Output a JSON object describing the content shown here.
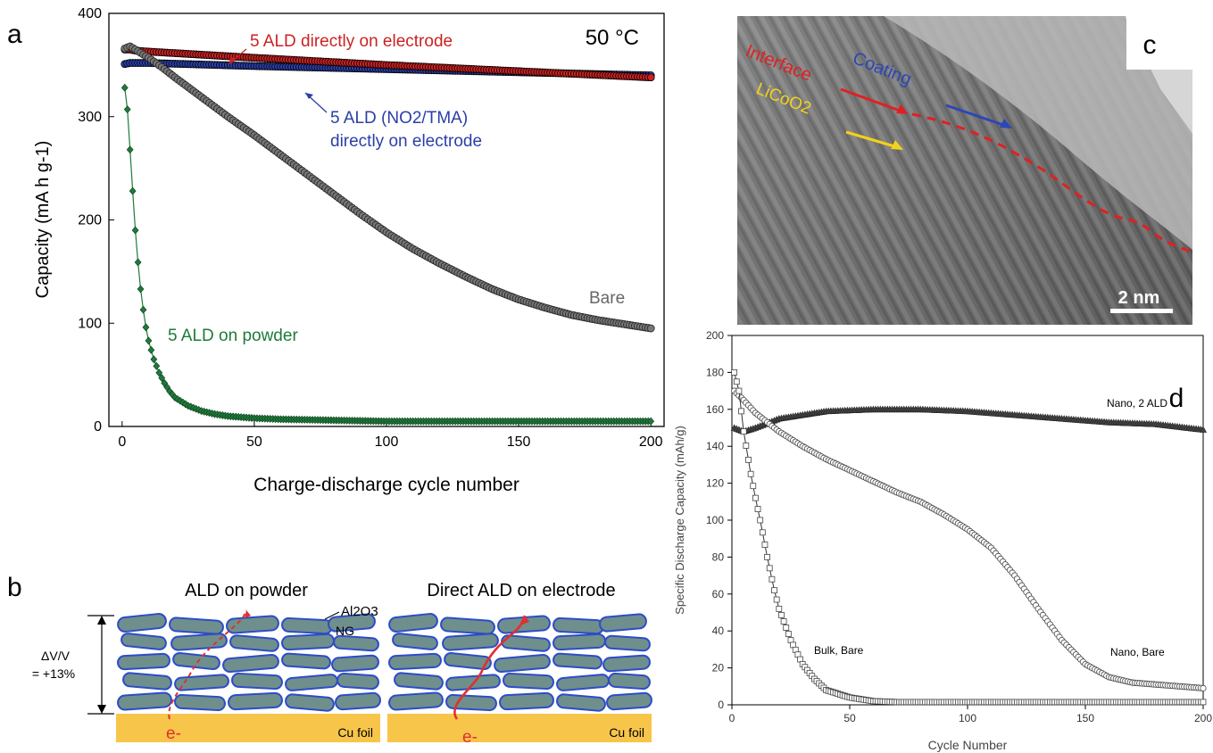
{
  "panels": {
    "a": {
      "label": "a",
      "temp_label": "50 °C"
    },
    "b": {
      "label": "b",
      "left_title": "ALD on powder",
      "right_title": "Direct ALD on electrode",
      "al2o3_label": "Al2O3",
      "ng_label": "NG",
      "dv_label_1": "ΔV/V",
      "dv_label_2": "= +13%",
      "cu_label_left": "Cu foil",
      "cu_label_right": "Cu foil",
      "electron_left": "e-",
      "electron_right": "e-"
    },
    "c": {
      "label": "c",
      "interface_label": "Interface",
      "coating_label": "Coating",
      "licoo2_label": "LiCoO2",
      "scale_label": "2 nm"
    },
    "d": {
      "label": "d"
    }
  },
  "chart_data": [
    {
      "type": "line",
      "panel": "a",
      "xlabel": "Charge-discharge cycle number",
      "ylabel": "Capacity (mA h g-1)",
      "xlim": [
        -5,
        205
      ],
      "ylim": [
        0,
        400
      ],
      "xticks": [
        0,
        50,
        100,
        150,
        200
      ],
      "yticks": [
        0,
        100,
        200,
        300,
        400
      ],
      "annotations": {
        "red": "5 ALD directly on electrode",
        "blue_line1": "5 ALD (NO2/TMA)",
        "blue_line2": "directly on electrode",
        "bare": "Bare",
        "green": "5 ALD on powder"
      },
      "series": [
        {
          "key": "red",
          "color": "#cc2222",
          "x": [
            1,
            3,
            5,
            10,
            50,
            100,
            150,
            200
          ],
          "y": [
            365,
            365,
            364,
            363,
            357,
            350,
            344,
            338
          ]
        },
        {
          "key": "blue",
          "color": "#2a3fa8",
          "x": [
            1,
            3,
            5,
            10,
            50,
            100,
            150,
            200
          ],
          "y": [
            351,
            352,
            352,
            352,
            349,
            346,
            343,
            340
          ]
        },
        {
          "key": "bare",
          "color": "#333333",
          "x": [
            1,
            3,
            5,
            10,
            15,
            20,
            30,
            40,
            50,
            60,
            70,
            80,
            90,
            100,
            110,
            120,
            130,
            140,
            150,
            160,
            170,
            180,
            190,
            200
          ],
          "y": [
            366,
            368,
            365,
            357,
            348,
            338,
            319,
            300,
            282,
            263,
            244,
            225,
            206,
            188,
            172,
            158,
            145,
            133,
            123,
            115,
            108,
            103,
            99,
            95
          ]
        },
        {
          "key": "green",
          "color": "#1f7a3a",
          "x": [
            1,
            2,
            3,
            4,
            5,
            6,
            7,
            8,
            9,
            10,
            12,
            14,
            16,
            18,
            20,
            25,
            30,
            35,
            40,
            50,
            60,
            80,
            100,
            150,
            200
          ],
          "y": [
            328,
            307,
            268,
            228,
            190,
            159,
            133,
            113,
            96,
            83,
            65,
            52,
            42,
            34,
            28,
            20,
            15,
            12,
            10,
            8,
            7,
            6,
            5,
            5,
            5
          ]
        }
      ]
    },
    {
      "type": "line",
      "panel": "d",
      "xlabel": "Cycle Number",
      "ylabel": "Specific Discharge Capacity (mAh/g)",
      "xlim": [
        0,
        200
      ],
      "ylim": [
        0,
        200
      ],
      "xticks": [
        0,
        50,
        100,
        150,
        200
      ],
      "yticks": [
        0,
        20,
        40,
        60,
        80,
        100,
        120,
        140,
        160,
        180,
        200
      ],
      "annotations": {
        "nano2": "Nano, 2 ALD",
        "bulk": "Bulk, Bare",
        "nanobare": "Nano, Bare"
      },
      "series": [
        {
          "key": "nano2",
          "x": [
            1,
            5,
            10,
            20,
            40,
            60,
            80,
            100,
            120,
            140,
            160,
            180,
            200
          ],
          "y": [
            150,
            148,
            150,
            155,
            159,
            160,
            160,
            159,
            157,
            155,
            153,
            152,
            149
          ]
        },
        {
          "key": "nanobare",
          "x": [
            1,
            5,
            10,
            20,
            30,
            40,
            50,
            60,
            70,
            80,
            90,
            100,
            110,
            120,
            130,
            140,
            150,
            160,
            170,
            180,
            190,
            200
          ],
          "y": [
            170,
            165,
            158,
            148,
            140,
            133,
            127,
            121,
            115,
            110,
            103,
            95,
            85,
            70,
            52,
            35,
            22,
            15,
            12,
            11,
            10,
            9
          ]
        },
        {
          "key": "bulk",
          "x": [
            1,
            3,
            5,
            8,
            10,
            12,
            15,
            18,
            20,
            25,
            30,
            35,
            40,
            50,
            60,
            70,
            100,
            150,
            200
          ],
          "y": [
            180,
            170,
            148,
            125,
            112,
            100,
            80,
            62,
            52,
            35,
            22,
            14,
            8,
            4,
            2,
            1.5,
            1.5,
            1.5,
            1.5
          ]
        }
      ]
    }
  ]
}
